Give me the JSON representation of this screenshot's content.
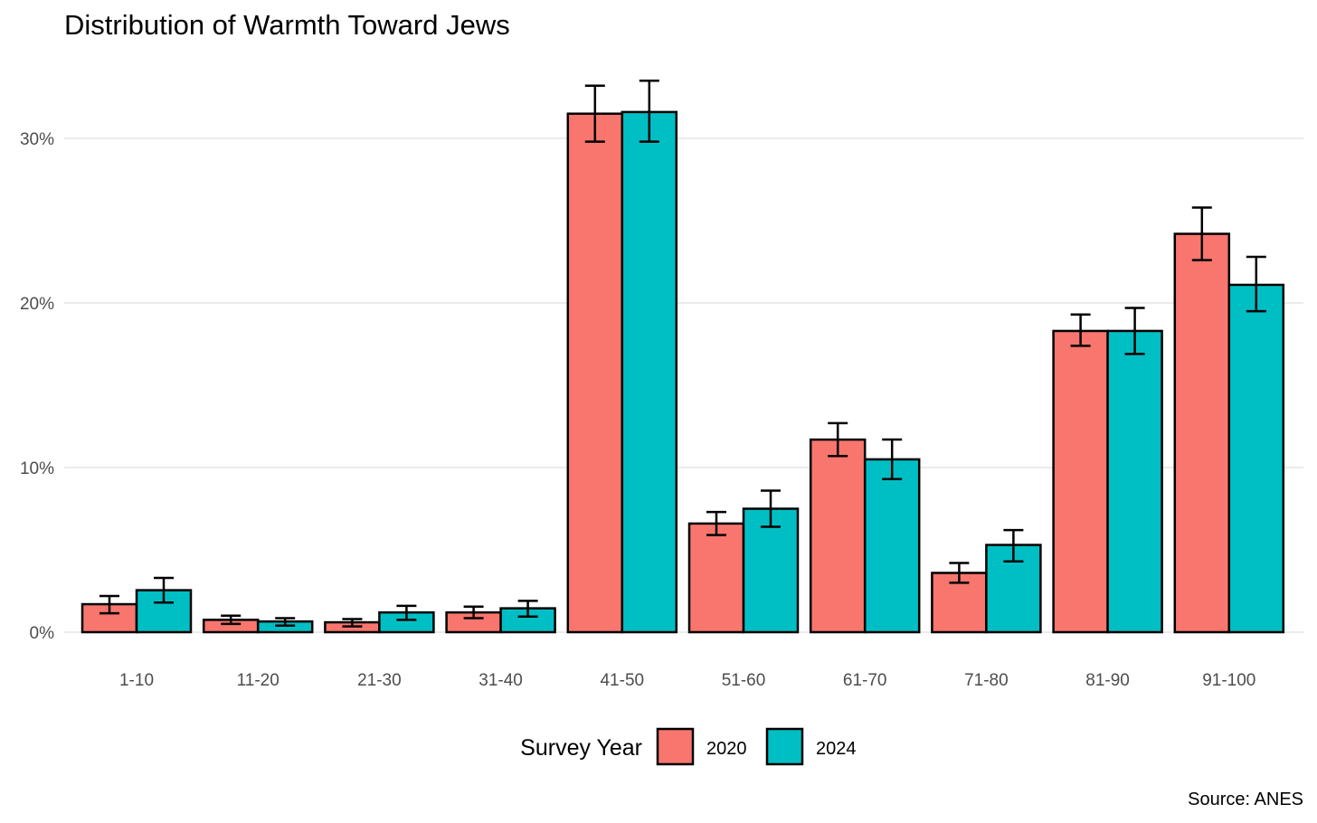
{
  "chart_data": {
    "type": "bar",
    "title": "Distribution of Warmth Toward Jews",
    "xlabel": "",
    "ylabel": "",
    "categories": [
      "1-10",
      "11-20",
      "21-30",
      "31-40",
      "41-50",
      "51-60",
      "61-70",
      "71-80",
      "81-90",
      "91-100"
    ],
    "series": [
      {
        "name": "2020",
        "color": "#F8766D",
        "values": [
          1.7,
          0.75,
          0.6,
          1.2,
          31.5,
          6.6,
          11.7,
          3.6,
          18.3,
          24.2
        ],
        "error_low": [
          1.15,
          0.5,
          0.35,
          0.85,
          29.8,
          5.9,
          10.7,
          3.0,
          17.4,
          22.6
        ],
        "error_high": [
          2.2,
          1.0,
          0.8,
          1.55,
          33.2,
          7.3,
          12.7,
          4.2,
          19.3,
          25.8
        ]
      },
      {
        "name": "2024",
        "color": "#00BFC4",
        "values": [
          2.55,
          0.65,
          1.2,
          1.45,
          31.6,
          7.5,
          10.5,
          5.3,
          18.3,
          21.1
        ],
        "error_low": [
          1.8,
          0.4,
          0.75,
          0.95,
          29.8,
          6.4,
          9.3,
          4.3,
          16.9,
          19.5
        ],
        "error_high": [
          3.3,
          0.85,
          1.6,
          1.9,
          33.5,
          8.6,
          11.7,
          6.2,
          19.7,
          22.8
        ]
      }
    ],
    "ylim": [
      0,
      34
    ],
    "y_ticks": [
      0,
      10,
      20,
      30
    ],
    "y_tick_labels": [
      "0%",
      "10%",
      "20%",
      "30%"
    ],
    "grid": true,
    "legend": {
      "title": "Survey Year",
      "position": "bottom"
    },
    "caption": "Source: ANES"
  }
}
